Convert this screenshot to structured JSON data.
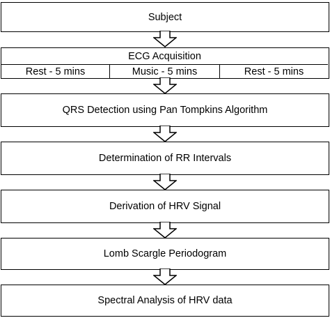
{
  "steps": {
    "subject": "Subject",
    "ecg": "ECG Acquisition",
    "phases": [
      "Rest - 5 mins",
      "Music - 5 mins",
      "Rest - 5 mins"
    ],
    "qrs": "QRS Detection using Pan Tompkins Algorithm",
    "rr": "Determination of RR Intervals",
    "hrv_signal": "Derivation of HRV Signal",
    "lomb": "Lomb Scargle Periodogram",
    "spectral": "Spectral Analysis of HRV data"
  },
  "colors": {
    "stroke": "#000000",
    "fill": "#ffffff"
  }
}
